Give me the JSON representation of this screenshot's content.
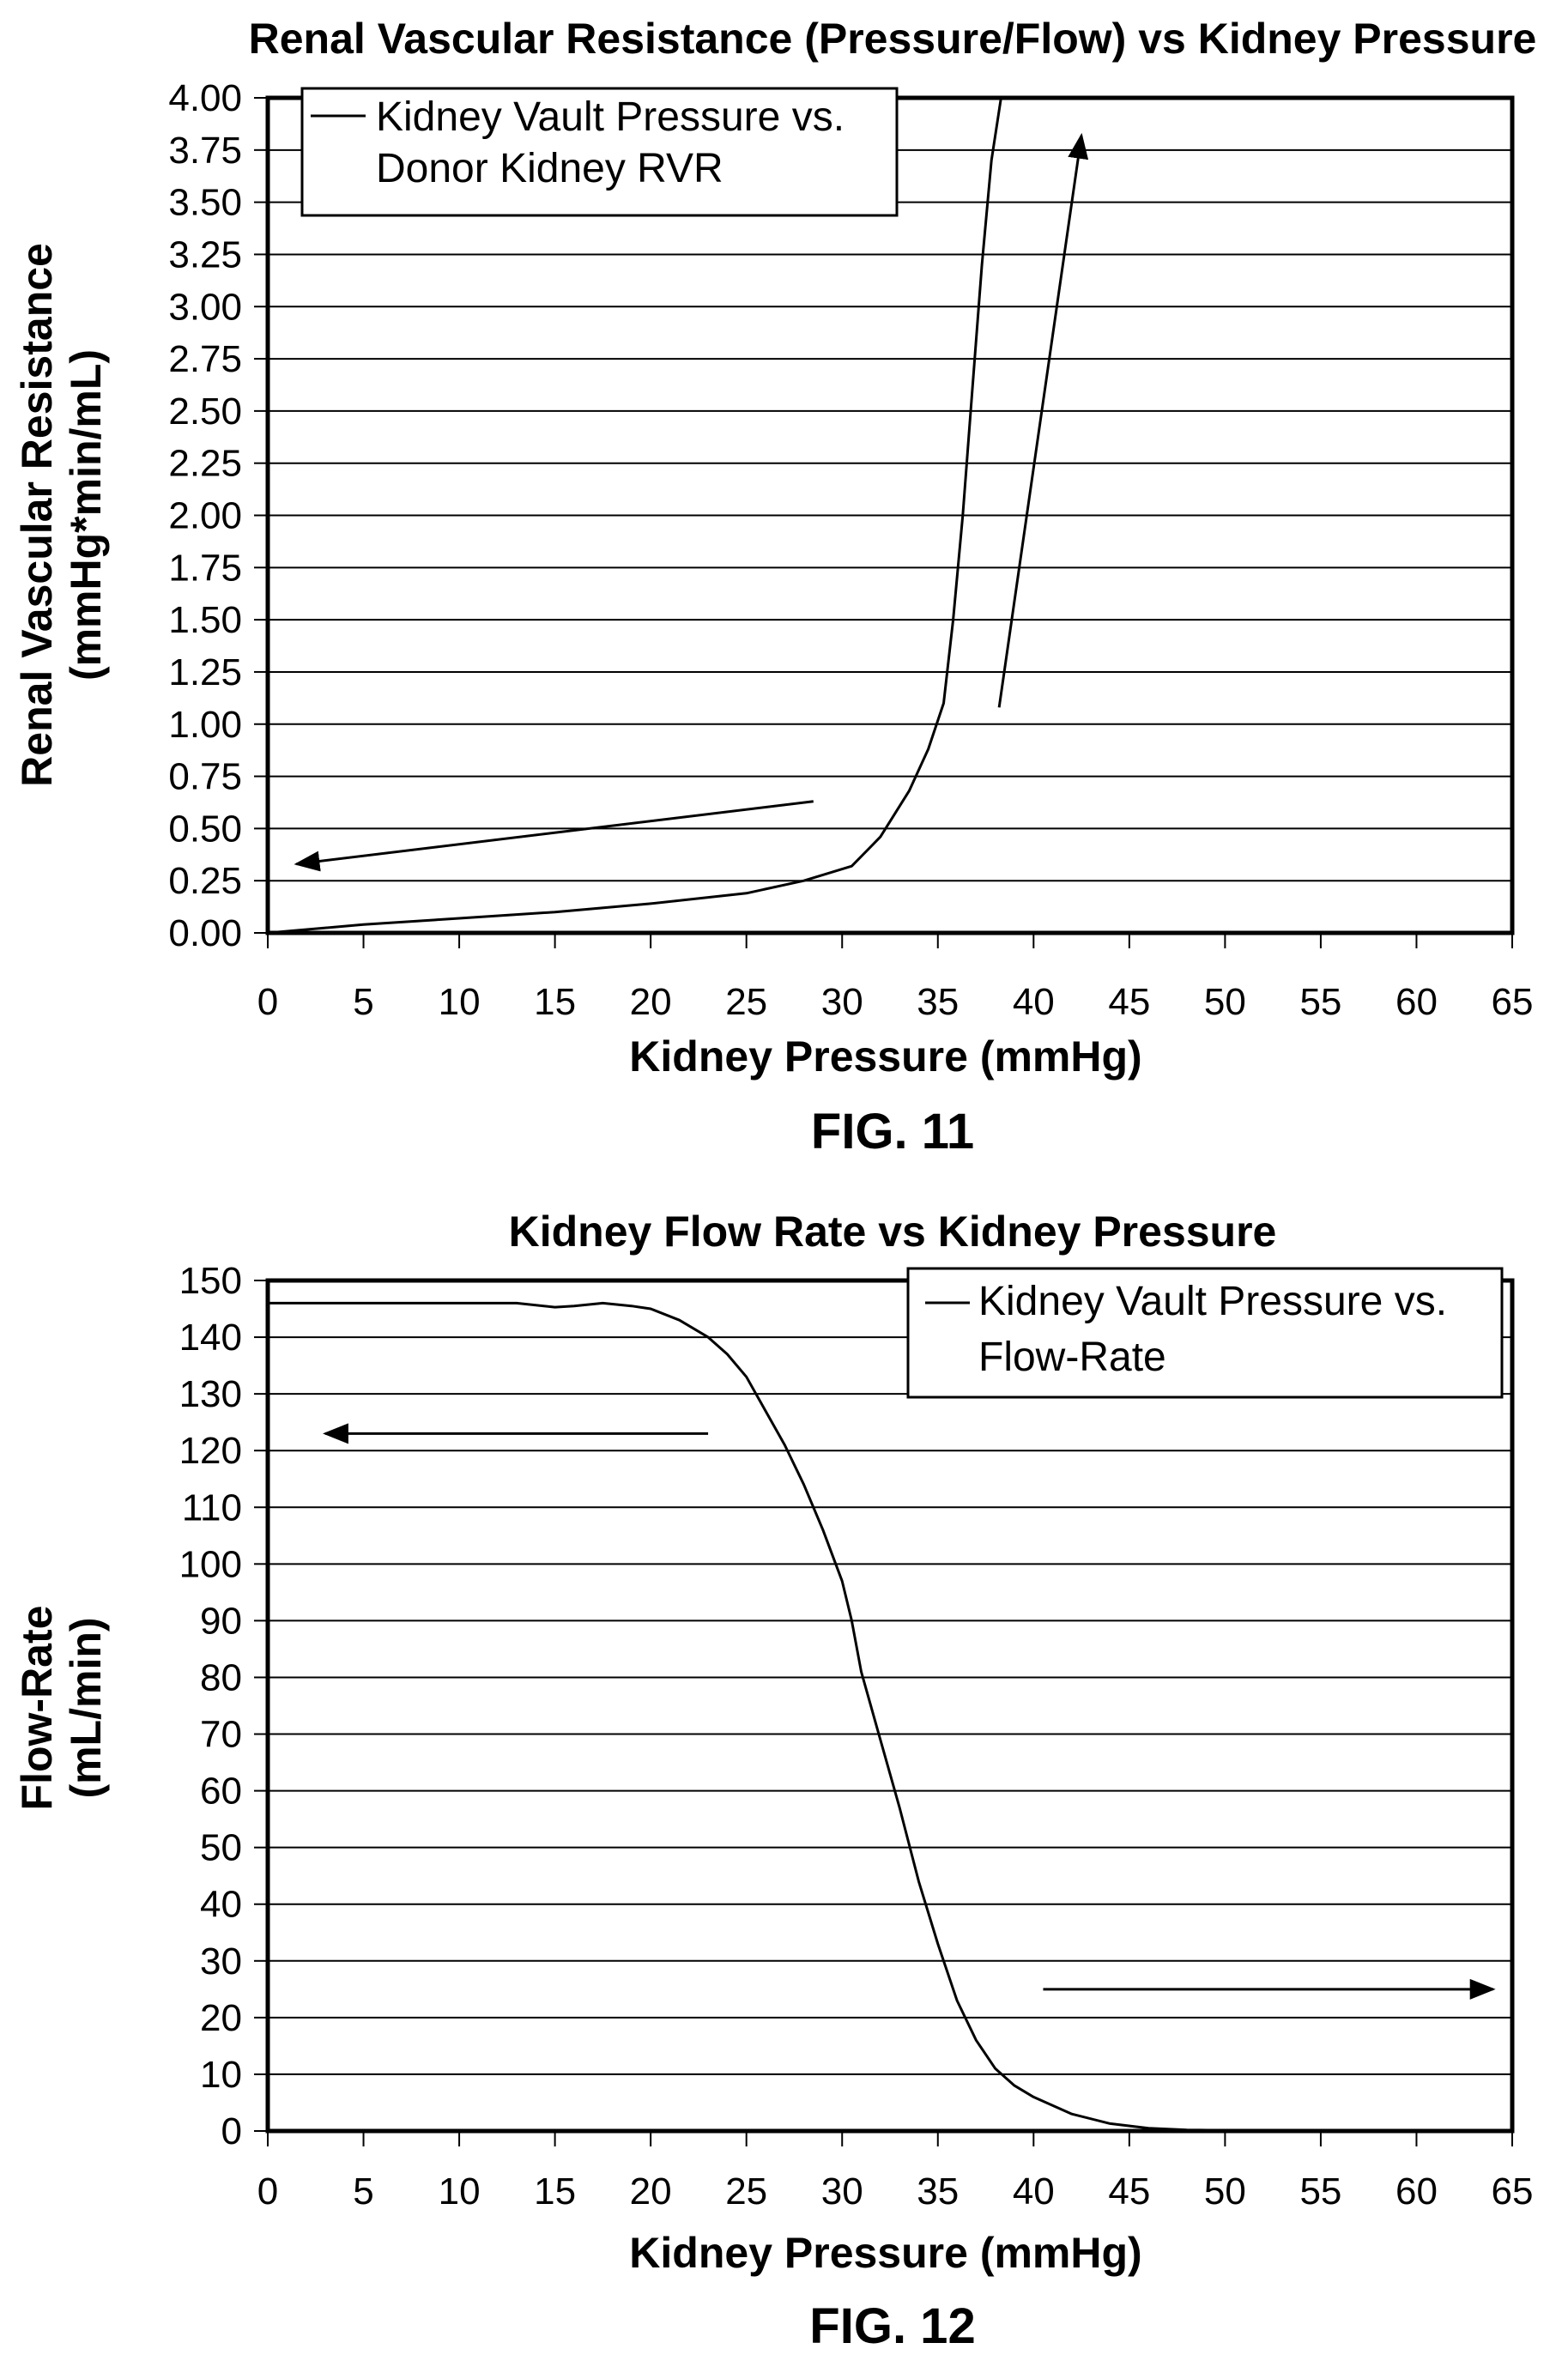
{
  "chart_data": [
    {
      "type": "line",
      "title": "Renal Vascular Resistance (Pressure/Flow) vs Kidney Pressure",
      "xlabel": "Kidney Pressure (mmHg)",
      "ylabel_lines": [
        "Renal Vascular Resistance",
        "(mmHg*min/mL)"
      ],
      "caption": "FIG. 11",
      "xlim": [
        0,
        65
      ],
      "ylim": [
        0,
        4
      ],
      "xticks": [
        "0",
        "5",
        "10",
        "15",
        "20",
        "25",
        "30",
        "35",
        "40",
        "45",
        "50",
        "55",
        "60",
        "65"
      ],
      "yticks": [
        "0.00",
        "0.25",
        "0.50",
        "0.75",
        "1.00",
        "1.25",
        "1.50",
        "1.75",
        "2.00",
        "2.25",
        "2.50",
        "2.75",
        "3.00",
        "3.25",
        "3.50",
        "3.75",
        "4.00"
      ],
      "grid": "horizontal",
      "legend_position": "top-left",
      "legend_lines": [
        "Kidney Vault Pressure vs.",
        "Donor Kidney RVR"
      ],
      "series": [
        {
          "x": [
            0,
            5,
            10,
            15,
            20,
            25,
            28,
            30.5,
            32,
            33.5,
            34.5,
            35.3,
            35.8,
            36.3,
            36.8,
            37.3,
            37.8,
            38.3
          ],
          "values": [
            0.0,
            0.04,
            0.07,
            0.1,
            0.14,
            0.19,
            0.25,
            0.32,
            0.46,
            0.68,
            0.88,
            1.1,
            1.5,
            2.0,
            2.6,
            3.2,
            3.7,
            4.0
          ]
        }
      ],
      "arrows": [
        {
          "from": [
            28.5,
            0.63
          ],
          "to": [
            1.5,
            0.33
          ]
        },
        {
          "from": [
            38.2,
            1.08
          ],
          "to": [
            42.5,
            3.82
          ]
        }
      ]
    },
    {
      "type": "line",
      "title": "Kidney Flow Rate vs Kidney Pressure",
      "xlabel": "Kidney Pressure (mmHg)",
      "ylabel_lines": [
        "Flow-Rate",
        "(mL/min)"
      ],
      "caption": "FIG. 12",
      "xlim": [
        0,
        65
      ],
      "ylim": [
        0,
        150
      ],
      "xticks": [
        "0",
        "5",
        "10",
        "15",
        "20",
        "25",
        "30",
        "35",
        "40",
        "45",
        "50",
        "55",
        "60",
        "65"
      ],
      "yticks": [
        "0",
        "10",
        "20",
        "30",
        "40",
        "50",
        "60",
        "70",
        "80",
        "90",
        "100",
        "110",
        "120",
        "130",
        "140",
        "150"
      ],
      "grid": "horizontal",
      "legend_position": "top-right",
      "legend_lines": [
        "Kidney Vault Pressure vs.",
        "Flow-Rate"
      ],
      "series": [
        {
          "x": [
            0,
            5,
            10,
            13,
            15,
            16,
            17.5,
            19,
            20,
            21.5,
            23,
            24,
            25,
            26,
            27,
            28,
            29,
            30,
            30.5,
            31,
            32,
            33,
            34,
            35,
            36,
            37,
            38,
            39,
            40,
            42,
            44,
            46,
            48,
            50
          ],
          "values": [
            146,
            146,
            146,
            146,
            145.3,
            145.5,
            146,
            145.5,
            145,
            143,
            140,
            137,
            133,
            127,
            121,
            114,
            106,
            97,
            90,
            81,
            69,
            57,
            44,
            33,
            23,
            16,
            11,
            8,
            6,
            3,
            1.3,
            0.5,
            0.2,
            0.1
          ]
        }
      ],
      "arrows": [
        {
          "from": [
            23,
            123
          ],
          "to": [
            3,
            123
          ]
        },
        {
          "from": [
            40.5,
            25
          ],
          "to": [
            64,
            25
          ]
        }
      ]
    }
  ]
}
